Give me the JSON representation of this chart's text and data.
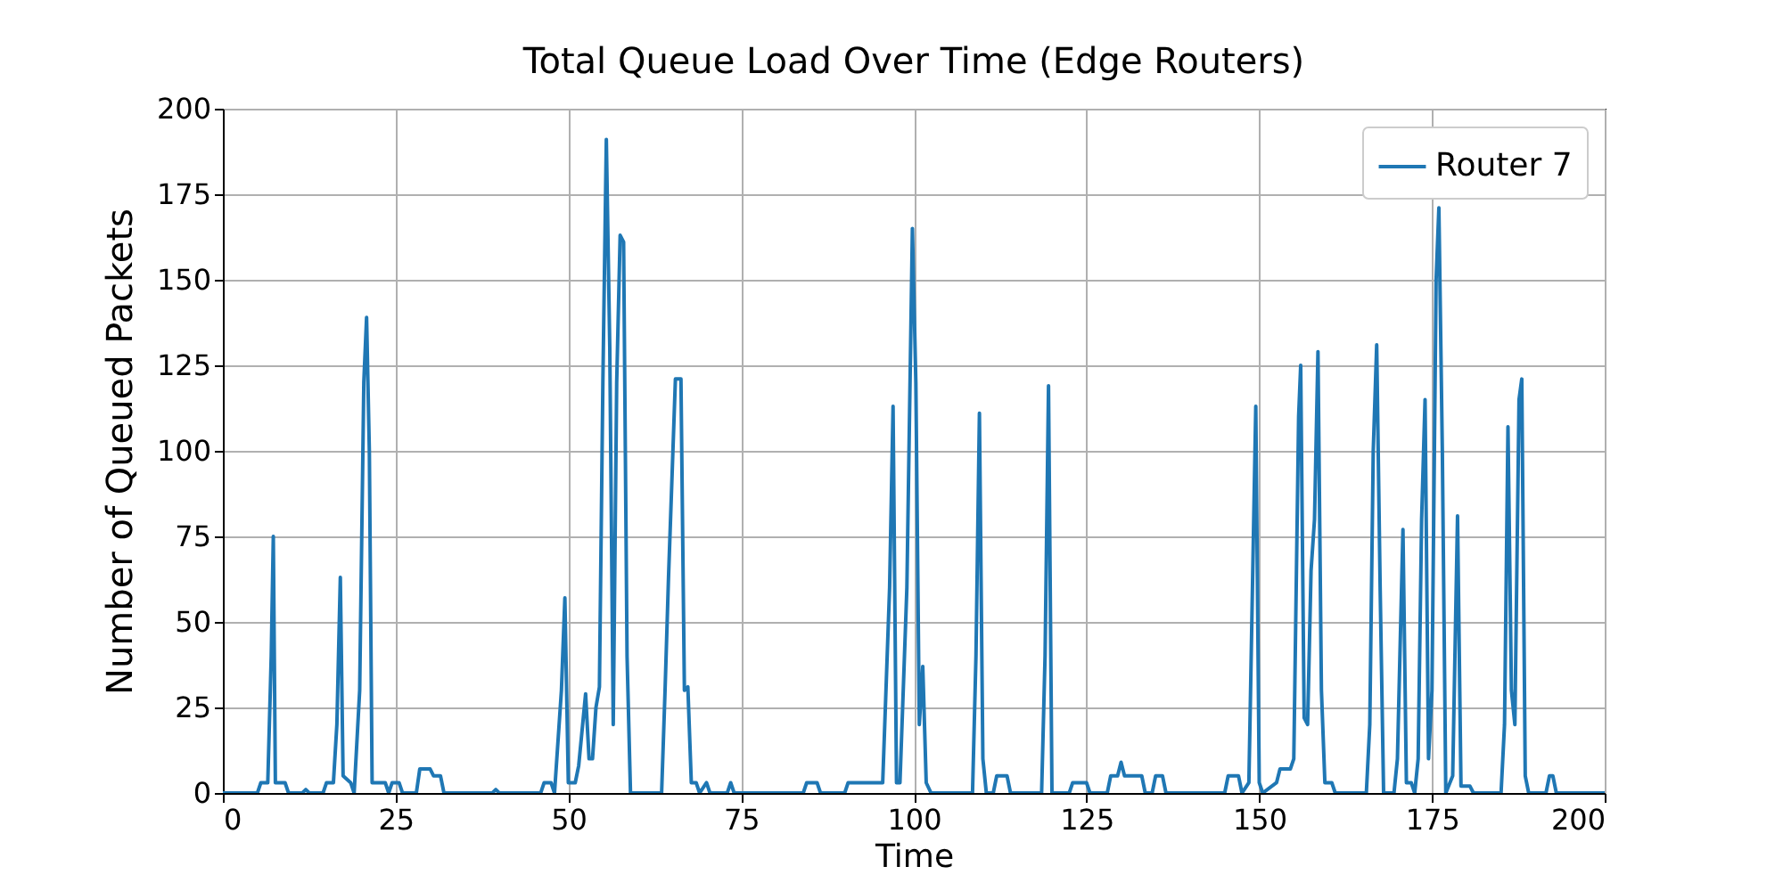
{
  "chart_data": {
    "type": "line",
    "title": "Total Queue Load Over Time (Edge Routers)",
    "xlabel": "Time",
    "ylabel": "Number of Queued Packets",
    "xlim": [
      0,
      200
    ],
    "ylim": [
      0,
      200
    ],
    "xticks": [
      0,
      25,
      50,
      75,
      100,
      125,
      150,
      175,
      200
    ],
    "yticks": [
      0,
      25,
      50,
      75,
      100,
      125,
      150,
      175,
      200
    ],
    "grid": true,
    "legend": "top right",
    "x": [
      0,
      5,
      5.5,
      6.5,
      7,
      7.3,
      7.6,
      9,
      9.5,
      11.5,
      12,
      12.5,
      14.5,
      15,
      16,
      16.5,
      17,
      17.4,
      18.5,
      19,
      19.8,
      20.4,
      20.8,
      21.2,
      21.6,
      23.5,
      24,
      24.5,
      25.5,
      26,
      28,
      28.5,
      30,
      30.5,
      31.5,
      32,
      39,
      39.5,
      40,
      46,
      46.5,
      47.5,
      48,
      49,
      49.5,
      50,
      51,
      51.5,
      52.5,
      53,
      53.5,
      54,
      54.5,
      55,
      55.5,
      56,
      56.5,
      57,
      57.5,
      58,
      58.5,
      59,
      63.5,
      64,
      64.5,
      65.5,
      66.3,
      66.8,
      67.3,
      67.8,
      68.5,
      69,
      70,
      70.5,
      73,
      73.5,
      74,
      84,
      84.5,
      86,
      86.5,
      90,
      90.5,
      95.5,
      96.5,
      97,
      97.5,
      98,
      99,
      99.8,
      100.3,
      100.8,
      101.3,
      101.8,
      102.5,
      108.5,
      109,
      109.5,
      110,
      110.5,
      111.5,
      112,
      113.5,
      114,
      118.5,
      119,
      119.5,
      120,
      122.5,
      123,
      125,
      125.5,
      128,
      128.5,
      129.5,
      130,
      130.5,
      133,
      133.5,
      134.5,
      135,
      136,
      136.5,
      145,
      145.5,
      147,
      147.5,
      148.5,
      149.2,
      149.5,
      150,
      150.5,
      152.5,
      153,
      154.5,
      155,
      155.7,
      156,
      156.5,
      157,
      157.5,
      158,
      158.5,
      159,
      159.5,
      160.5,
      161,
      165.5,
      166,
      166.5,
      167,
      167.5,
      168,
      169.5,
      170,
      170.8,
      171.3,
      172,
      172.5,
      173,
      173.5,
      174,
      174.5,
      175,
      175.6,
      176,
      176.5,
      177,
      178,
      178.7,
      179.2,
      180.5,
      181,
      185,
      185.5,
      186,
      186.5,
      187,
      187.6,
      188,
      188.5,
      189,
      191.5,
      192,
      192.5,
      193,
      200
    ],
    "series": [
      {
        "name": "Router 7",
        "color": "#1f77b4",
        "values": [
          0,
          0,
          3,
          3,
          40,
          75,
          3,
          3,
          0,
          0,
          1,
          0,
          0,
          3,
          3,
          20,
          63,
          5,
          3,
          0,
          30,
          120,
          139,
          100,
          3,
          3,
          0,
          3,
          3,
          0,
          0,
          7,
          7,
          5,
          5,
          0,
          0,
          1,
          0,
          0,
          3,
          3,
          0,
          30,
          57,
          3,
          3,
          8,
          29,
          10,
          10,
          25,
          31,
          120,
          191,
          130,
          20,
          120,
          163,
          161,
          40,
          0,
          0,
          30,
          63,
          121,
          121,
          30,
          31,
          3,
          3,
          0,
          3,
          0,
          0,
          3,
          0,
          0,
          3,
          3,
          0,
          0,
          3,
          3,
          60,
          113,
          3,
          3,
          60,
          165,
          120,
          20,
          37,
          3,
          0,
          0,
          40,
          111,
          10,
          0,
          0,
          5,
          5,
          0,
          0,
          40,
          119,
          0,
          0,
          3,
          3,
          0,
          0,
          5,
          5,
          9,
          5,
          5,
          0,
          0,
          5,
          5,
          0,
          0,
          5,
          5,
          0,
          3,
          80,
          113,
          3,
          0,
          3,
          7,
          7,
          10,
          110,
          125,
          22,
          20,
          65,
          80,
          129,
          30,
          3,
          3,
          0,
          0,
          20,
          100,
          131,
          60,
          0,
          0,
          10,
          77,
          3,
          3,
          0,
          10,
          80,
          115,
          10,
          30,
          150,
          171,
          100,
          0,
          5,
          81,
          2,
          2,
          0,
          0,
          20,
          107,
          30,
          20,
          115,
          121,
          5,
          0,
          0,
          5,
          5,
          0,
          0
        ]
      }
    ]
  }
}
